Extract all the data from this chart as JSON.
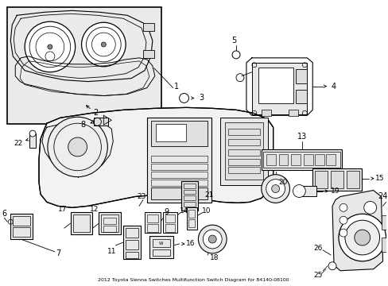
{
  "title": "2012 Toyota Sienna Switches Multifunction Switch Diagram for 84140-08100",
  "bg": "#ffffff",
  "lc": "#000000",
  "figsize": [
    4.89,
    3.6
  ],
  "dpi": 100
}
